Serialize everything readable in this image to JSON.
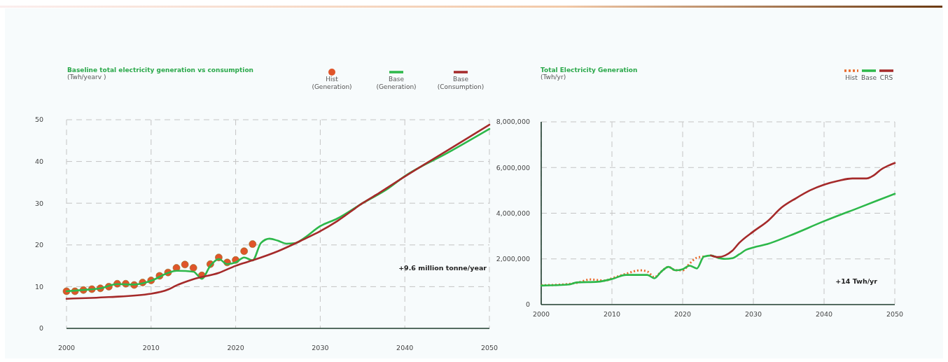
{
  "chart_data": [
    {
      "type": "line",
      "title": "Baseline total electricity generation vs consumption",
      "subtitle": "(Twh/yearv )",
      "xlim": [
        2000,
        2050
      ],
      "xticks": [
        2000,
        2010,
        2020,
        2030,
        2040,
        2050
      ],
      "ylim": [
        0,
        50
      ],
      "yticks": [
        0,
        10,
        20,
        30,
        40,
        50
      ],
      "grid": true,
      "legend": "top right",
      "annotations": [
        "+9.6 million tonne/year"
      ],
      "series": [
        {
          "name": "Hist (Generation)",
          "type": "scatter",
          "marker": "circle",
          "color": "#e0552a",
          "x": [
            2000,
            2001,
            2002,
            2003,
            2004,
            2005,
            2006,
            2007,
            2008,
            2009,
            2010,
            2011,
            2012,
            2013,
            2014,
            2015,
            2016,
            2017,
            2018,
            2019,
            2020,
            2021,
            2022
          ],
          "values": [
            8.9,
            8.9,
            9.2,
            9.4,
            9.6,
            10.0,
            10.7,
            10.7,
            10.4,
            11.0,
            11.5,
            12.6,
            13.4,
            14.5,
            15.3,
            14.5,
            12.7,
            15.4,
            17.0,
            15.8,
            16.4,
            18.5,
            20.2
          ]
        },
        {
          "name": "Base (Generation)",
          "color": "#2db84a",
          "x": [
            2000,
            2002,
            2004,
            2006,
            2008,
            2010,
            2012,
            2013,
            2015,
            2016,
            2017,
            2018,
            2019,
            2020,
            2021,
            2022,
            2023,
            2024,
            2025,
            2026,
            2027,
            2028,
            2030,
            2032,
            2035,
            2038,
            2040,
            2045,
            2050
          ],
          "values": [
            8.9,
            9.2,
            9.6,
            10.6,
            10.5,
            11.4,
            13.3,
            13.8,
            13.6,
            11.9,
            15.0,
            16.6,
            15.4,
            15.8,
            17.0,
            16.3,
            20.5,
            21.5,
            21.0,
            20.3,
            20.4,
            21.5,
            24.5,
            26.3,
            30.0,
            33.5,
            36.5,
            42.0,
            47.8
          ]
        },
        {
          "name": "Base (Consumption)",
          "color": "#a52a2a",
          "x": [
            2000,
            2005,
            2010,
            2012,
            2013,
            2015,
            2018,
            2020,
            2022,
            2025,
            2028,
            2030,
            2032,
            2035,
            2037,
            2040,
            2045,
            2050
          ],
          "values": [
            7.1,
            7.5,
            8.3,
            9.3,
            10.3,
            11.8,
            13.3,
            15.0,
            16.3,
            18.5,
            21.3,
            23.3,
            25.7,
            30.0,
            32.5,
            36.4,
            42.6,
            48.8
          ]
        }
      ]
    },
    {
      "type": "line",
      "title": "Total Electricity Generation",
      "subtitle": "(Twh/yr)",
      "xlim": [
        2000,
        2050
      ],
      "xticks": [
        2000,
        2010,
        2020,
        2030,
        2040,
        2050
      ],
      "ylim": [
        0,
        8000000
      ],
      "yticks": [
        0,
        {
          "value": 2000000,
          "label": "2,000,000"
        },
        {
          "value": 4000000,
          "label": "4,000,000"
        },
        {
          "value": 6000000,
          "label": "6,000,000"
        },
        {
          "value": 8000000,
          "label": "8,000,000"
        }
      ],
      "grid": true,
      "legend": "top right",
      "annotations": [
        "+14 Twh/yr"
      ],
      "series": [
        {
          "name": "Hist",
          "line_style": "dotted",
          "color": "#e8692a",
          "x": [
            2000,
            2003,
            2005,
            2007,
            2009,
            2010,
            2012,
            2014,
            2015,
            2016,
            2017,
            2018,
            2019,
            2020,
            2021,
            2022,
            2023
          ],
          "values": [
            850000,
            880000,
            950000,
            1100000,
            1050000,
            1150000,
            1350000,
            1500000,
            1450000,
            1200000,
            1450000,
            1650000,
            1500000,
            1500000,
            1800000,
            2050000,
            2100000
          ]
        },
        {
          "name": "Base",
          "color": "#2db84a",
          "x": [
            2000,
            2004,
            2005,
            2008,
            2010,
            2012,
            2015,
            2016,
            2017,
            2018,
            2019,
            2020,
            2021,
            2022,
            2023,
            2024,
            2025,
            2026,
            2027,
            2028,
            2029,
            2030,
            2032,
            2035,
            2040,
            2045,
            2050
          ],
          "values": [
            830000,
            880000,
            970000,
            1000000,
            1120000,
            1300000,
            1300000,
            1150000,
            1450000,
            1650000,
            1500000,
            1550000,
            1700000,
            1580000,
            2100000,
            2150000,
            2050000,
            2000000,
            2030000,
            2200000,
            2400000,
            2500000,
            2650000,
            3000000,
            3650000,
            4250000,
            4850000
          ]
        },
        {
          "name": "CRS",
          "color": "#a52a2a",
          "x": [
            2024,
            2025,
            2026,
            2027,
            2028,
            2030,
            2032,
            2034,
            2036,
            2038,
            2040,
            2042,
            2044,
            2046,
            2047,
            2048,
            2050
          ],
          "values": [
            2150000,
            2080000,
            2150000,
            2350000,
            2700000,
            3200000,
            3650000,
            4250000,
            4650000,
            5000000,
            5250000,
            5420000,
            5520000,
            5520000,
            5650000,
            5900000,
            6200000
          ]
        }
      ]
    }
  ]
}
